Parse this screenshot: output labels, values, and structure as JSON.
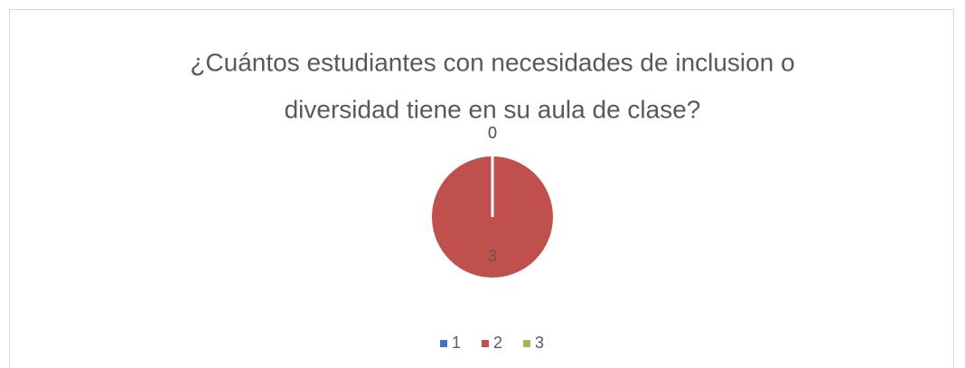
{
  "chart_data": {
    "type": "pie",
    "title": [
      "¿Cuántos estudiantes con necesidades de inclusion o",
      "diversidad tiene en su aula de clase?"
    ],
    "categories": [
      "1",
      "2",
      "3"
    ],
    "values": [
      0,
      3,
      0
    ],
    "colors": [
      "#4472c4",
      "#c0504d",
      "#9bbb59"
    ],
    "legend": "bottom"
  }
}
